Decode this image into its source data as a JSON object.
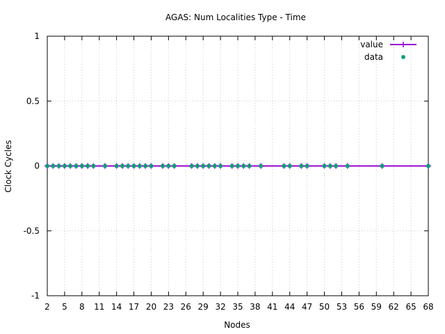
{
  "chart_data": {
    "type": "line",
    "title": "AGAS: Num Localities Type - Time",
    "xlabel": "Nodes",
    "ylabel": "Clock Cycles",
    "xlim": [
      2,
      68
    ],
    "ylim": [
      -1,
      1
    ],
    "x_ticks": [
      "2",
      "5",
      "8",
      "11",
      "14",
      "17",
      "20",
      "23",
      "26",
      "29",
      "32",
      "35",
      "38",
      "41",
      "44",
      "47",
      "50",
      "53",
      "56",
      "59",
      "62",
      "65",
      "68"
    ],
    "y_ticks": [
      "1",
      "0.5",
      "0",
      "-0.5",
      "-1"
    ],
    "y_tick_values": [
      1,
      0.5,
      0,
      -0.5,
      -1
    ],
    "grid": true,
    "legend_position": "top-right",
    "series": [
      {
        "name": "value",
        "style": "line-with-plus",
        "color": "#9400d3",
        "x": [
          2,
          3,
          4,
          5,
          6,
          7,
          8,
          9,
          10,
          12,
          14,
          15,
          16,
          17,
          18,
          19,
          20,
          22,
          23,
          24,
          27,
          28,
          29,
          30,
          31,
          32,
          34,
          35,
          36,
          37,
          39,
          43,
          44,
          46,
          47,
          50,
          51,
          52,
          54,
          60,
          68
        ],
        "y": [
          0,
          0,
          0,
          0,
          0,
          0,
          0,
          0,
          0,
          0,
          0,
          0,
          0,
          0,
          0,
          0,
          0,
          0,
          0,
          0,
          0,
          0,
          0,
          0,
          0,
          0,
          0,
          0,
          0,
          0,
          0,
          0,
          0,
          0,
          0,
          0,
          0,
          0,
          0,
          0,
          0
        ]
      },
      {
        "name": "data",
        "style": "points",
        "color": "#009e73",
        "x": [
          2,
          3,
          4,
          5,
          6,
          7,
          8,
          9,
          10,
          12,
          14,
          15,
          16,
          17,
          18,
          19,
          20,
          22,
          23,
          24,
          27,
          28,
          29,
          30,
          31,
          32,
          34,
          35,
          36,
          37,
          39,
          43,
          44,
          46,
          47,
          50,
          51,
          52,
          54,
          60,
          68
        ],
        "y": [
          0,
          0,
          0,
          0,
          0,
          0,
          0,
          0,
          0,
          0,
          0,
          0,
          0,
          0,
          0,
          0,
          0,
          0,
          0,
          0,
          0,
          0,
          0,
          0,
          0,
          0,
          0,
          0,
          0,
          0,
          0,
          0,
          0,
          0,
          0,
          0,
          0,
          0,
          0,
          0,
          0
        ]
      }
    ]
  }
}
